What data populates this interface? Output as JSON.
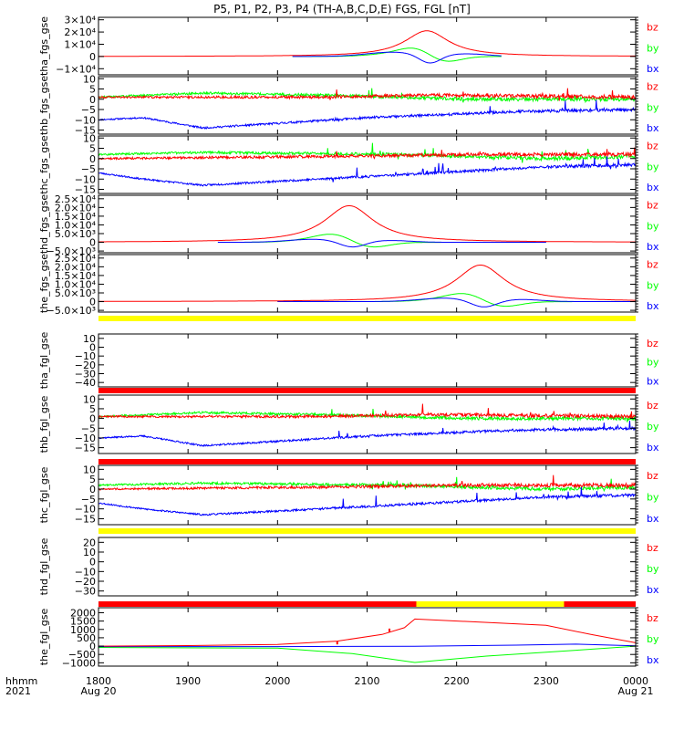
{
  "title": "P5, P1, P2, P3, P4 (TH-A,B,C,D,E) FGS, FGL [nT]",
  "xaxis": {
    "row_label_1": "hhmm",
    "row_label_2": "2021",
    "ticks": [
      {
        "t": 0,
        "label": "1800",
        "sub": "Aug 20"
      },
      {
        "t": 60,
        "label": "1900",
        "sub": ""
      },
      {
        "t": 120,
        "label": "2000",
        "sub": ""
      },
      {
        "t": 180,
        "label": "2100",
        "sub": ""
      },
      {
        "t": 240,
        "label": "2200",
        "sub": ""
      },
      {
        "t": 300,
        "label": "2300",
        "sub": ""
      },
      {
        "t": 360,
        "label": "0000",
        "sub": "Aug 21"
      }
    ]
  },
  "colors": {
    "bx": "#0000ff",
    "by": "#00ff00",
    "bz": "#ff0000",
    "axis": "#000000",
    "flag_red": "#ff0000",
    "flag_yellow": "#ffff00"
  },
  "legend_labels": [
    "bz",
    "by",
    "bx"
  ],
  "chart_data": [
    {
      "type": "line",
      "ylabel": "tha_fgs_gse",
      "ylim": [
        -15000,
        32000
      ],
      "ticks": [
        {
          "v": 30000,
          "label": "3×10⁴"
        },
        {
          "v": 20000,
          "label": "2×10⁴"
        },
        {
          "v": 10000,
          "label": "1×10⁴"
        },
        {
          "v": 0,
          "label": "0"
        },
        {
          "v": -10000,
          "label": "−1×10⁴"
        }
      ],
      "gen": "pulse",
      "x_start": 130,
      "x_end": 270,
      "bz": {
        "peak": 21000,
        "center": 220,
        "width": 18
      },
      "by": {
        "amp": 4500,
        "center": 222,
        "width": 12
      },
      "bx": {
        "amp": 7000,
        "center": 222,
        "width": 10
      }
    },
    {
      "type": "line",
      "ylabel": "thb_fgs_gse",
      "ylim": [
        -17,
        11
      ],
      "ticks": [
        {
          "v": 10,
          "label": "10"
        },
        {
          "v": 5,
          "label": "5"
        },
        {
          "v": 0,
          "label": "0"
        },
        {
          "v": -5,
          "label": "−5"
        },
        {
          "v": -10,
          "label": "−10"
        },
        {
          "v": -15,
          "label": "−15"
        }
      ],
      "gen": "noisy",
      "seed": 11,
      "spikes": 0.6,
      "bz": [
        {
          "t": 0,
          "v": 1
        },
        {
          "t": 150,
          "v": 1
        },
        {
          "t": 220,
          "v": 2
        },
        {
          "t": 360,
          "v": 1
        }
      ],
      "by": [
        {
          "t": 0,
          "v": 1
        },
        {
          "t": 70,
          "v": 3
        },
        {
          "t": 150,
          "v": 2
        },
        {
          "t": 250,
          "v": 0
        },
        {
          "t": 360,
          "v": 0
        }
      ],
      "bx": [
        {
          "t": 0,
          "v": -10
        },
        {
          "t": 30,
          "v": -9
        },
        {
          "t": 70,
          "v": -14
        },
        {
          "t": 180,
          "v": -9
        },
        {
          "t": 280,
          "v": -6
        },
        {
          "t": 360,
          "v": -5
        }
      ]
    },
    {
      "type": "line",
      "ylabel": "thc_fgs_gse",
      "ylim": [
        -17,
        11
      ],
      "ticks": [
        {
          "v": 10,
          "label": "10"
        },
        {
          "v": 5,
          "label": "5"
        },
        {
          "v": 0,
          "label": "0"
        },
        {
          "v": -5,
          "label": "−5"
        },
        {
          "v": -10,
          "label": "−10"
        },
        {
          "v": -15,
          "label": "−15"
        }
      ],
      "gen": "noisy",
      "seed": 23,
      "spikes": 1,
      "bz": [
        {
          "t": 0,
          "v": 0
        },
        {
          "t": 150,
          "v": 1
        },
        {
          "t": 250,
          "v": 2
        },
        {
          "t": 360,
          "v": 2
        }
      ],
      "by": [
        {
          "t": 0,
          "v": 2
        },
        {
          "t": 70,
          "v": 3
        },
        {
          "t": 200,
          "v": 2
        },
        {
          "t": 300,
          "v": 0
        },
        {
          "t": 360,
          "v": 1
        }
      ],
      "bx": [
        {
          "t": 0,
          "v": -7
        },
        {
          "t": 30,
          "v": -10
        },
        {
          "t": 70,
          "v": -13
        },
        {
          "t": 200,
          "v": -8
        },
        {
          "t": 300,
          "v": -4
        },
        {
          "t": 360,
          "v": -3
        }
      ]
    },
    {
      "type": "line",
      "ylabel": "thd_fgs_gse",
      "ylim": [
        -6000,
        27000
      ],
      "ticks": [
        {
          "v": 25000,
          "label": "2.5×10⁴"
        },
        {
          "v": 20000,
          "label": "2.0×10⁴"
        },
        {
          "v": 15000,
          "label": "1.5×10⁴"
        },
        {
          "v": 10000,
          "label": "1.0×10⁴"
        },
        {
          "v": 5000,
          "label": "5.0×10³"
        },
        {
          "v": 0,
          "label": "0"
        },
        {
          "v": -5000,
          "label": "−5.0×10³"
        }
      ],
      "gen": "pulse",
      "x_start": 80,
      "x_end": 300,
      "bz": {
        "peak": 21000,
        "center": 168,
        "width": 20
      },
      "by": {
        "amp": 3000,
        "center": 170,
        "width": 14
      },
      "bx": {
        "amp": 3500,
        "center": 170,
        "width": 12
      }
    },
    {
      "type": "line",
      "ylabel": "the_fgs_gse",
      "ylim": [
        -6000,
        27000
      ],
      "ticks": [
        {
          "v": 25000,
          "label": "2.5×10⁴"
        },
        {
          "v": 20000,
          "label": "2.0×10⁴"
        },
        {
          "v": 15000,
          "label": "1.5×10⁴"
        },
        {
          "v": 10000,
          "label": "1.0×10⁴"
        },
        {
          "v": 5000,
          "label": "5.0×10³"
        },
        {
          "v": 0,
          "label": "0"
        },
        {
          "v": -5000,
          "label": "−5.0×10³"
        }
      ],
      "gen": "pulse",
      "x_start": 120,
      "x_end": 360,
      "bz": {
        "peak": 21000,
        "center": 256,
        "width": 20
      },
      "by": {
        "amp": 3000,
        "center": 258,
        "width": 14
      },
      "bx": {
        "amp": 4000,
        "center": 258,
        "width": 12
      }
    },
    {
      "type": "line",
      "ylabel": "tha_fgl_gse",
      "ylim": [
        -45,
        15
      ],
      "ticks": [
        {
          "v": 10,
          "label": "10"
        },
        {
          "v": 0,
          "label": "0"
        },
        {
          "v": -10,
          "label": "−10"
        },
        {
          "v": -20,
          "label": "−20"
        },
        {
          "v": -30,
          "label": "−30"
        },
        {
          "v": -40,
          "label": "−40"
        }
      ],
      "gen": "empty",
      "flag": [
        {
          "from": 0,
          "to": 360,
          "color": "flag_yellow"
        }
      ]
    },
    {
      "type": "line",
      "ylabel": "thb_fgl_gse",
      "ylim": [
        -18,
        12
      ],
      "ticks": [
        {
          "v": 10,
          "label": "10"
        },
        {
          "v": 5,
          "label": "5"
        },
        {
          "v": 0,
          "label": "0"
        },
        {
          "v": -5,
          "label": "−5"
        },
        {
          "v": -10,
          "label": "−10"
        },
        {
          "v": -15,
          "label": "−15"
        }
      ],
      "gen": "noisy",
      "seed": 37,
      "spikes": 0.6,
      "flag": [
        {
          "from": 0,
          "to": 360,
          "color": "flag_red"
        }
      ],
      "bz": [
        {
          "t": 0,
          "v": 1
        },
        {
          "t": 150,
          "v": 1
        },
        {
          "t": 220,
          "v": 2
        },
        {
          "t": 360,
          "v": 1
        }
      ],
      "by": [
        {
          "t": 0,
          "v": 1
        },
        {
          "t": 70,
          "v": 3
        },
        {
          "t": 150,
          "v": 2
        },
        {
          "t": 250,
          "v": 0
        },
        {
          "t": 360,
          "v": 0
        }
      ],
      "bx": [
        {
          "t": 0,
          "v": -10
        },
        {
          "t": 30,
          "v": -9
        },
        {
          "t": 70,
          "v": -14
        },
        {
          "t": 180,
          "v": -9
        },
        {
          "t": 280,
          "v": -6
        },
        {
          "t": 360,
          "v": -5
        }
      ]
    },
    {
      "type": "line",
      "ylabel": "thc_fgl_gse",
      "ylim": [
        -18,
        12
      ],
      "ticks": [
        {
          "v": 10,
          "label": "10"
        },
        {
          "v": 5,
          "label": "5"
        },
        {
          "v": 0,
          "label": "0"
        },
        {
          "v": -5,
          "label": "−5"
        },
        {
          "v": -10,
          "label": "−10"
        },
        {
          "v": -15,
          "label": "−15"
        }
      ],
      "gen": "noisy",
      "seed": 53,
      "spikes": 1,
      "flag": [
        {
          "from": 0,
          "to": 360,
          "color": "flag_red"
        }
      ],
      "bz": [
        {
          "t": 0,
          "v": 0
        },
        {
          "t": 150,
          "v": 1
        },
        {
          "t": 250,
          "v": 2
        },
        {
          "t": 360,
          "v": 2
        }
      ],
      "by": [
        {
          "t": 0,
          "v": 2
        },
        {
          "t": 70,
          "v": 3
        },
        {
          "t": 200,
          "v": 2
        },
        {
          "t": 300,
          "v": 0
        },
        {
          "t": 360,
          "v": 1
        }
      ],
      "bx": [
        {
          "t": 0,
          "v": -7
        },
        {
          "t": 30,
          "v": -10
        },
        {
          "t": 70,
          "v": -13
        },
        {
          "t": 200,
          "v": -8
        },
        {
          "t": 300,
          "v": -4
        },
        {
          "t": 360,
          "v": -3
        }
      ]
    },
    {
      "type": "line",
      "ylabel": "thd_fgl_gse",
      "ylim": [
        -35,
        25
      ],
      "ticks": [
        {
          "v": 20,
          "label": "20"
        },
        {
          "v": 10,
          "label": "10"
        },
        {
          "v": 0,
          "label": "0"
        },
        {
          "v": -10,
          "label": "−10"
        },
        {
          "v": -20,
          "label": "−20"
        },
        {
          "v": -30,
          "label": "−30"
        }
      ],
      "gen": "empty",
      "flag": [
        {
          "from": 0,
          "to": 360,
          "color": "flag_yellow"
        }
      ]
    },
    {
      "type": "line",
      "ylabel": "the_fgl_gse",
      "ylim": [
        -1200,
        2300
      ],
      "ticks": [
        {
          "v": 2000,
          "label": "2000"
        },
        {
          "v": 1500,
          "label": "1500"
        },
        {
          "v": 1000,
          "label": "1000"
        },
        {
          "v": 500,
          "label": "500"
        },
        {
          "v": 0,
          "label": "0"
        },
        {
          "v": -500,
          "label": "−500"
        },
        {
          "v": -1000,
          "label": "−1000"
        }
      ],
      "gen": "lines",
      "flag": [
        {
          "from": 0,
          "to": 213,
          "color": "flag_red"
        },
        {
          "from": 213,
          "to": 312,
          "color": "flag_yellow"
        },
        {
          "from": 312,
          "to": 360,
          "color": "flag_red"
        }
      ],
      "bz": [
        {
          "t": 0,
          "v": 0
        },
        {
          "t": 60,
          "v": 30
        },
        {
          "t": 120,
          "v": 100
        },
        {
          "t": 160,
          "v": 300
        },
        {
          "t": 190,
          "v": 700
        },
        {
          "t": 205,
          "v": 1100
        },
        {
          "t": 212,
          "v": 1620
        },
        {
          "t": 300,
          "v": 1250
        },
        {
          "t": 330,
          "v": 700
        },
        {
          "t": 360,
          "v": 200
        }
      ],
      "by": [
        {
          "t": 0,
          "v": -80
        },
        {
          "t": 120,
          "v": -120
        },
        {
          "t": 170,
          "v": -450
        },
        {
          "t": 212,
          "v": -980
        },
        {
          "t": 260,
          "v": -600
        },
        {
          "t": 320,
          "v": -250
        },
        {
          "t": 360,
          "v": 0
        }
      ],
      "bx": [
        {
          "t": 0,
          "v": -30
        },
        {
          "t": 120,
          "v": -30
        },
        {
          "t": 212,
          "v": -10
        },
        {
          "t": 280,
          "v": 60
        },
        {
          "t": 320,
          "v": 120
        },
        {
          "t": 360,
          "v": 20
        }
      ],
      "spikes_z": [
        {
          "t": 160,
          "v": 300
        },
        {
          "t": 195,
          "v": 1050
        }
      ]
    }
  ]
}
